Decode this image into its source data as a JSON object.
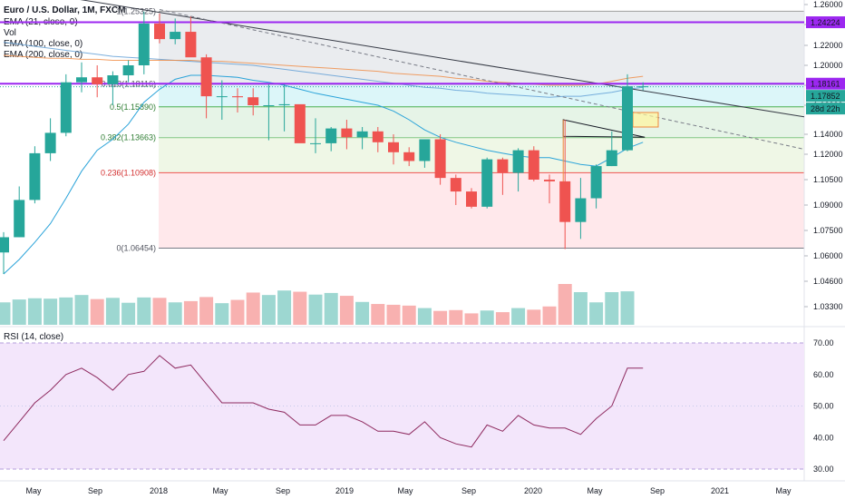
{
  "legend": {
    "symbol": "Euro / U.S. Dollar, 1M, FXCM",
    "ema21": "EMA (21, close, 0)",
    "vol": "Vol",
    "ema100": "EMA (100, close, 0)",
    "ema200": "EMA (200, close, 0)",
    "rsi": "RSI (14, close)"
  },
  "colors": {
    "up": "#26a69a",
    "down": "#ef5350",
    "ema21": "#2aa3d9",
    "ema100": "#f0883e",
    "ema200": "#5b9bd5",
    "magenta": "#9c27f0",
    "rsi": "#8e2a5f",
    "rsi_band": "#f3e6fb"
  },
  "price_axis": {
    "ticks": [
      "1.26000",
      "1.24000",
      "1.22000",
      "1.20000",
      "1.18000",
      "1.16000",
      "1.14000",
      "1.12000",
      "1.10500",
      "1.09000",
      "1.07500",
      "1.06000",
      "1.04600",
      "1.03300"
    ],
    "tag_resistance": "1.24224",
    "tag_level": "1.18161",
    "tag_last": "1.17852",
    "tag_countdown": "28d 22h"
  },
  "rsi_axis": {
    "ticks": [
      "70.00",
      "60.00",
      "50.00",
      "40.00",
      "30.00"
    ]
  },
  "time_axis": {
    "labels": [
      "May",
      "Sep",
      "2018",
      "May",
      "Sep",
      "2019",
      "May",
      "Sep",
      "2020",
      "May",
      "Sep",
      "2021",
      "May"
    ]
  },
  "fib_labels": [
    "1(1.25325)",
    "0.618(1.18116)",
    "0.5(1.15890)",
    "0.382(1.13663)",
    "0.236(1.10908)",
    "0(1.06454)"
  ],
  "chart_data": {
    "type": "candlestick",
    "title": "Euro / U.S. Dollar, 1M, FXCM",
    "candles": [
      {
        "o": 1.062,
        "h": 1.074,
        "l": 1.05,
        "c": 1.071
      },
      {
        "o": 1.071,
        "h": 1.101,
        "l": 1.071,
        "c": 1.093
      },
      {
        "o": 1.093,
        "h": 1.128,
        "l": 1.091,
        "c": 1.121
      },
      {
        "o": 1.121,
        "h": 1.151,
        "l": 1.116,
        "c": 1.141
      },
      {
        "o": 1.141,
        "h": 1.191,
        "l": 1.138,
        "c": 1.183
      },
      {
        "o": 1.183,
        "h": 1.203,
        "l": 1.173,
        "c": 1.188
      },
      {
        "o": 1.188,
        "h": 1.2,
        "l": 1.168,
        "c": 1.181
      },
      {
        "o": 1.181,
        "h": 1.194,
        "l": 1.16,
        "c": 1.19
      },
      {
        "o": 1.19,
        "h": 1.205,
        "l": 1.183,
        "c": 1.2
      },
      {
        "o": 1.2,
        "h": 1.253,
        "l": 1.191,
        "c": 1.241
      },
      {
        "o": 1.241,
        "h": 1.251,
        "l": 1.222,
        "c": 1.226
      },
      {
        "o": 1.226,
        "h": 1.246,
        "l": 1.221,
        "c": 1.233
      },
      {
        "o": 1.233,
        "h": 1.248,
        "l": 1.209,
        "c": 1.208
      },
      {
        "o": 1.208,
        "h": 1.211,
        "l": 1.151,
        "c": 1.169
      },
      {
        "o": 1.169,
        "h": 1.185,
        "l": 1.15,
        "c": 1.169
      },
      {
        "o": 1.169,
        "h": 1.177,
        "l": 1.155,
        "c": 1.168
      },
      {
        "o": 1.168,
        "h": 1.177,
        "l": 1.153,
        "c": 1.16
      },
      {
        "o": 1.16,
        "h": 1.181,
        "l": 1.134,
        "c": 1.16
      },
      {
        "o": 1.16,
        "h": 1.181,
        "l": 1.142,
        "c": 1.161
      },
      {
        "o": 1.161,
        "h": 1.16,
        "l": 1.132,
        "c": 1.131
      },
      {
        "o": 1.131,
        "h": 1.151,
        "l": 1.121,
        "c": 1.131
      },
      {
        "o": 1.131,
        "h": 1.145,
        "l": 1.123,
        "c": 1.144
      },
      {
        "o": 1.144,
        "h": 1.15,
        "l": 1.125,
        "c": 1.137
      },
      {
        "o": 1.137,
        "h": 1.145,
        "l": 1.125,
        "c": 1.142
      },
      {
        "o": 1.142,
        "h": 1.145,
        "l": 1.122,
        "c": 1.132
      },
      {
        "o": 1.132,
        "h": 1.14,
        "l": 1.114,
        "c": 1.122
      },
      {
        "o": 1.122,
        "h": 1.127,
        "l": 1.113,
        "c": 1.116
      },
      {
        "o": 1.116,
        "h": 1.135,
        "l": 1.112,
        "c": 1.135
      },
      {
        "o": 1.135,
        "h": 1.14,
        "l": 1.102,
        "c": 1.106
      },
      {
        "o": 1.106,
        "h": 1.108,
        "l": 1.09,
        "c": 1.098
      },
      {
        "o": 1.098,
        "h": 1.1,
        "l": 1.088,
        "c": 1.089
      },
      {
        "o": 1.089,
        "h": 1.118,
        "l": 1.088,
        "c": 1.117
      },
      {
        "o": 1.117,
        "h": 1.118,
        "l": 1.096,
        "c": 1.109
      },
      {
        "o": 1.109,
        "h": 1.126,
        "l": 1.098,
        "c": 1.124
      },
      {
        "o": 1.124,
        "h": 1.128,
        "l": 1.104,
        "c": 1.105
      },
      {
        "o": 1.105,
        "h": 1.108,
        "l": 1.091,
        "c": 1.104
      },
      {
        "o": 1.104,
        "h": 1.15,
        "l": 1.064,
        "c": 1.08
      },
      {
        "o": 1.08,
        "h": 1.106,
        "l": 1.07,
        "c": 1.094
      },
      {
        "o": 1.094,
        "h": 1.114,
        "l": 1.088,
        "c": 1.113
      },
      {
        "o": 1.113,
        "h": 1.142,
        "l": 1.113,
        "c": 1.124
      },
      {
        "o": 1.124,
        "h": 1.191,
        "l": 1.123,
        "c": 1.179
      },
      {
        "o": 1.179,
        "h": 1.183,
        "l": 1.175,
        "c": 1.179
      }
    ],
    "volume": [
      0.55,
      0.62,
      0.65,
      0.64,
      0.67,
      0.73,
      0.63,
      0.66,
      0.54,
      0.67,
      0.66,
      0.55,
      0.58,
      0.68,
      0.53,
      0.61,
      0.79,
      0.73,
      0.84,
      0.81,
      0.74,
      0.78,
      0.71,
      0.56,
      0.51,
      0.49,
      0.47,
      0.41,
      0.34,
      0.36,
      0.28,
      0.35,
      0.31,
      0.41,
      0.37,
      0.45,
      1.0,
      0.8,
      0.55,
      0.8,
      0.82,
      0.0
    ],
    "ema21": [
      1.05,
      1.058,
      1.068,
      1.079,
      1.094,
      1.11,
      1.124,
      1.135,
      1.147,
      1.163,
      1.176,
      1.186,
      1.19,
      1.19,
      1.189,
      1.188,
      1.185,
      1.183,
      1.18,
      1.176,
      1.172,
      1.169,
      1.166,
      1.163,
      1.16,
      1.156,
      1.15,
      1.143,
      1.137,
      1.132,
      1.128,
      1.124,
      1.121,
      1.119,
      1.118,
      1.118,
      1.116,
      1.114,
      1.113,
      1.118,
      1.126,
      1.132
    ],
    "ema100": [
      1.21,
      1.209,
      1.208,
      1.207,
      1.207,
      1.206,
      1.206,
      1.205,
      1.205,
      1.205,
      1.205,
      1.205,
      1.205,
      1.204,
      1.204,
      1.203,
      1.202,
      1.201,
      1.2,
      1.199,
      1.198,
      1.197,
      1.196,
      1.195,
      1.194,
      1.192,
      1.191,
      1.19,
      1.189,
      1.187,
      1.186,
      1.184,
      1.183,
      1.182,
      1.181,
      1.18,
      1.18,
      1.18,
      1.181,
      1.184,
      1.187,
      1.189
    ],
    "ema200": [
      1.223,
      1.221,
      1.219,
      1.217,
      1.215,
      1.213,
      1.211,
      1.209,
      1.208,
      1.207,
      1.206,
      1.205,
      1.204,
      1.203,
      1.202,
      1.201,
      1.2,
      1.198,
      1.196,
      1.194,
      1.192,
      1.19,
      1.188,
      1.186,
      1.184,
      1.182,
      1.18,
      1.178,
      1.177,
      1.175,
      1.174,
      1.172,
      1.171,
      1.17,
      1.169,
      1.168,
      1.169,
      1.169,
      1.171,
      1.173,
      1.176,
      1.178
    ],
    "rsi": [
      39,
      45,
      51,
      55,
      60,
      62,
      59,
      55,
      60,
      61,
      66,
      62,
      63,
      57,
      51,
      51,
      51,
      49,
      48,
      44,
      44,
      47,
      47,
      45,
      42,
      42,
      41,
      45,
      40,
      38,
      37,
      44,
      42,
      47,
      44,
      43,
      43,
      41,
      46,
      50,
      62,
      62
    ],
    "levels": {
      "resistance_1": 1.24224,
      "resistance_2": 1.18161,
      "last": 1.17852
    },
    "fib": [
      {
        "ratio": 1,
        "price": 1.25325
      },
      {
        "ratio": 0.618,
        "price": 1.18116
      },
      {
        "ratio": 0.5,
        "price": 1.1589
      },
      {
        "ratio": 0.382,
        "price": 1.13663
      },
      {
        "ratio": 0.236,
        "price": 1.10908
      },
      {
        "ratio": 0,
        "price": 1.06454
      }
    ],
    "rsi_range": [
      30,
      70
    ]
  }
}
